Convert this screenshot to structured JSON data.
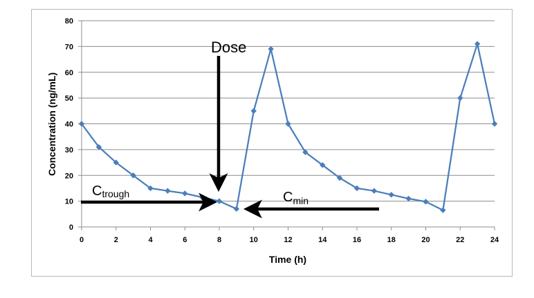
{
  "chart_data": {
    "type": "line",
    "title": "",
    "xlabel": "Time (h)",
    "ylabel": "Concentration (ng/mL)",
    "xlim": [
      0,
      24
    ],
    "ylim": [
      0,
      80
    ],
    "x_ticks": [
      0,
      2,
      4,
      6,
      8,
      10,
      12,
      14,
      16,
      18,
      20,
      22,
      24
    ],
    "y_ticks": [
      0,
      10,
      20,
      30,
      40,
      50,
      60,
      70,
      80
    ],
    "grid": "horizontal",
    "legend": "none",
    "series": [
      {
        "color": "#4a7ebb",
        "marker": "diamond",
        "x": [
          0,
          1,
          2,
          3,
          4,
          5,
          6,
          7,
          8,
          9,
          10,
          11,
          12,
          13,
          14,
          15,
          16,
          17,
          18,
          19,
          20,
          21,
          22,
          23,
          24
        ],
        "y": [
          40,
          31,
          25,
          20,
          15,
          14,
          13,
          11.5,
          10,
          7,
          45,
          69,
          40,
          29,
          24,
          19,
          15,
          14,
          12.5,
          11,
          9.8,
          6.5,
          50,
          71,
          40
        ]
      }
    ],
    "annotations": [
      {
        "id": "dose",
        "text": "Dose",
        "arrow_direction": "down",
        "target_x": 8
      },
      {
        "id": "ctrough",
        "text": "C",
        "subscript": "trough",
        "arrow_direction": "right",
        "target_x": 8,
        "target_y": 10
      },
      {
        "id": "cmin",
        "text": "C",
        "subscript": "min",
        "arrow_direction": "left",
        "target_x": 9,
        "target_y": 7
      }
    ]
  }
}
